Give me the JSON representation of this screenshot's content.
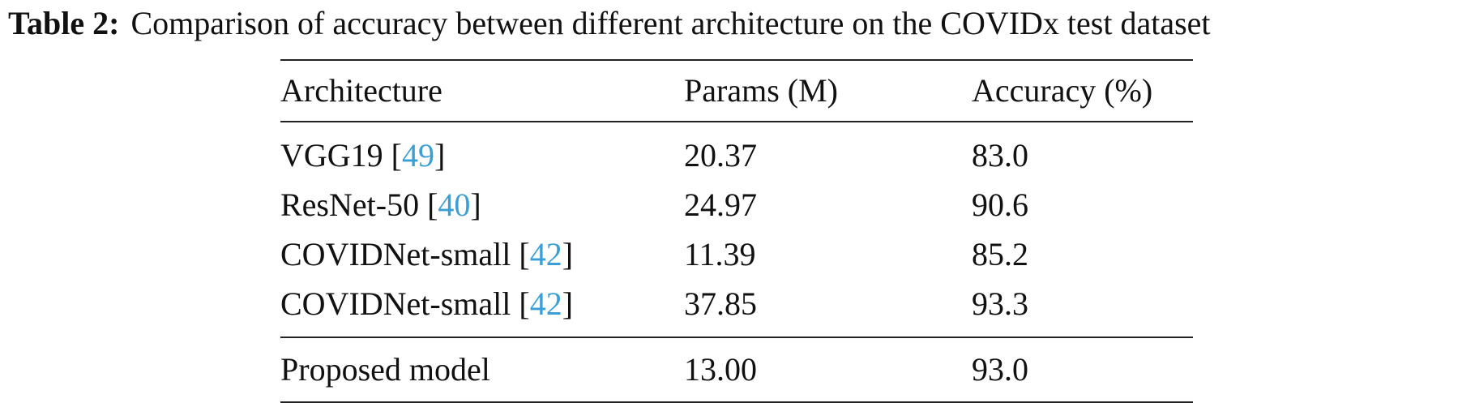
{
  "caption": {
    "label": "Table 2:",
    "text": "Comparison of accuracy between different architecture on the COVIDx test dataset"
  },
  "table": {
    "headers": [
      "Architecture",
      "Params (M)",
      "Accuracy (%)"
    ],
    "rows": [
      {
        "architecture": "VGG19",
        "cite": "49",
        "params": "20.37",
        "accuracy": "83.0"
      },
      {
        "architecture": "ResNet-50",
        "cite": "40",
        "params": "24.97",
        "accuracy": "90.6"
      },
      {
        "architecture": "COVIDNet-small",
        "cite": "42",
        "params": "11.39",
        "accuracy": "85.2"
      },
      {
        "architecture": "COVIDNet-small",
        "cite": "42",
        "params": "37.85",
        "accuracy": "93.3"
      }
    ],
    "footer_row": {
      "architecture": "Proposed model",
      "params": "13.00",
      "accuracy": "93.0"
    }
  },
  "colors": {
    "citation_link": "#3a9fd6",
    "text": "#111111",
    "rule": "#222222"
  }
}
